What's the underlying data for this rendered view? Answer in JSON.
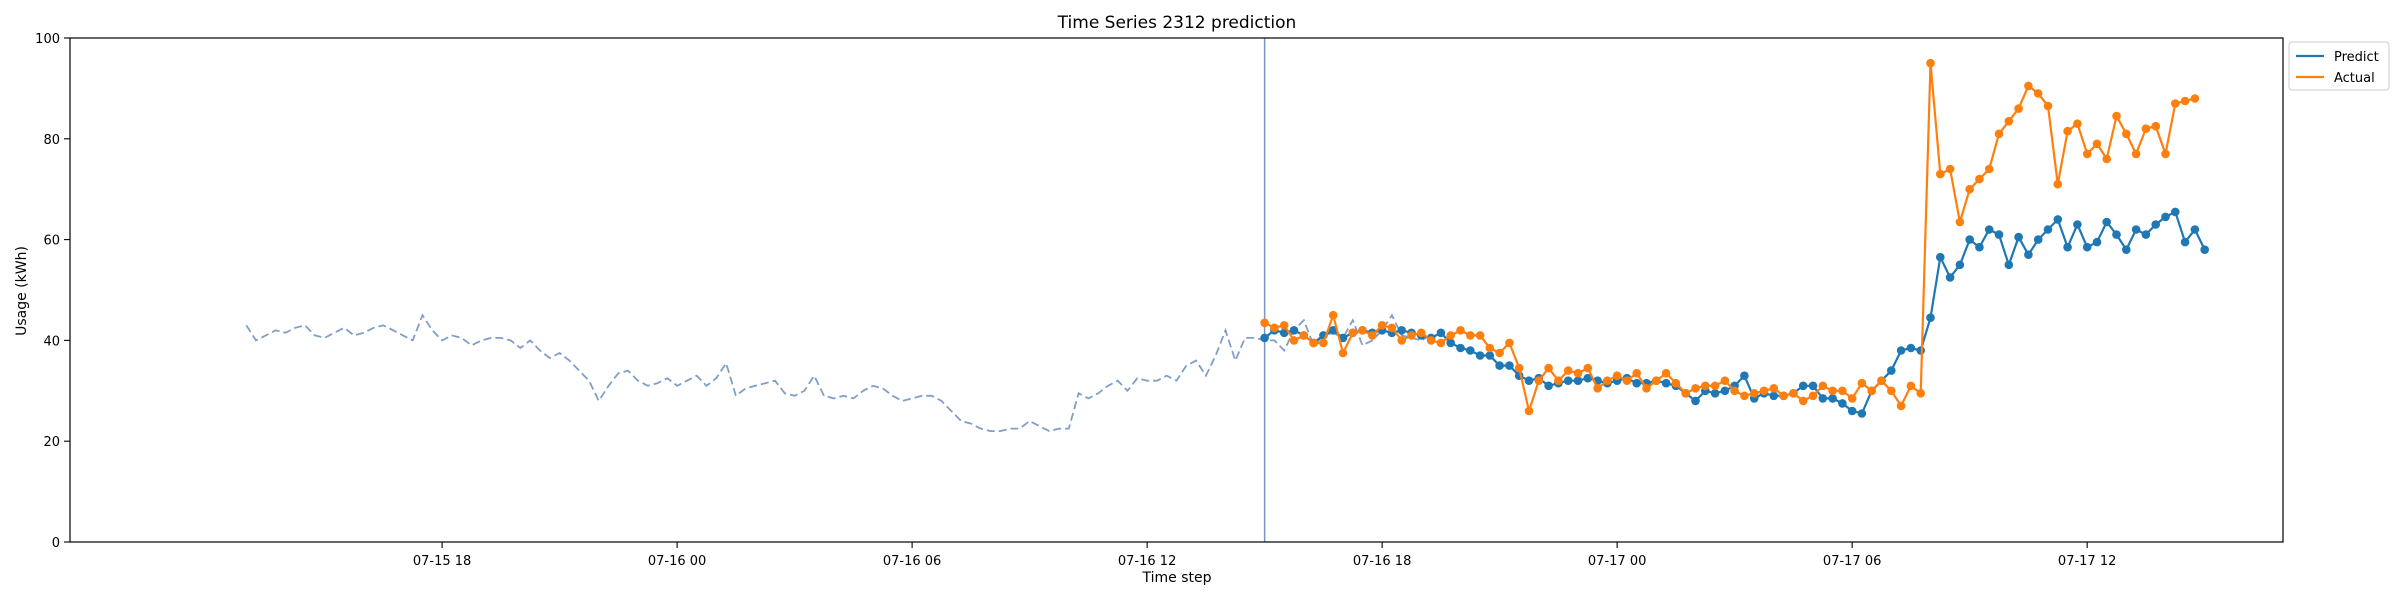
{
  "chart_data": {
    "type": "line",
    "title": "Time Series 2312 prediction",
    "xlabel": "Time step",
    "ylabel": "Usage (kWh)",
    "ylim": [
      0,
      100
    ],
    "yticks": [
      0,
      20,
      40,
      60,
      80,
      100
    ],
    "xlim": [
      "2024-07-15 08:30",
      "2024-07-17 17:00"
    ],
    "xticks": [
      {
        "t": "2024-07-15 18:00",
        "label": "07-15 18"
      },
      {
        "t": "2024-07-16 00:00",
        "label": "07-16 00"
      },
      {
        "t": "2024-07-16 06:00",
        "label": "07-16 06"
      },
      {
        "t": "2024-07-16 12:00",
        "label": "07-16 12"
      },
      {
        "t": "2024-07-16 18:00",
        "label": "07-16 18"
      },
      {
        "t": "2024-07-17 00:00",
        "label": "07-17 00"
      },
      {
        "t": "2024-07-17 06:00",
        "label": "07-17 06"
      },
      {
        "t": "2024-07-17 12:00",
        "label": "07-17 12"
      }
    ],
    "forecast_start": "2024-07-16 15:00",
    "grid": false,
    "legend_position": "top-right",
    "history": {
      "start": "2024-07-15 13:00",
      "step_minutes": 15,
      "color": "#7f9fc8",
      "values": [
        43,
        40,
        41,
        42,
        41.5,
        42.5,
        43,
        41,
        40.5,
        41.5,
        42.5,
        41,
        41.5,
        42.5,
        43,
        42,
        41,
        40,
        45,
        42,
        40,
        41,
        40.5,
        39,
        40,
        40.5,
        40.5,
        40,
        38.5,
        40,
        38,
        36.5,
        37.5,
        36,
        34,
        32,
        28,
        31,
        33.5,
        34,
        32,
        31,
        31.5,
        32.5,
        31,
        32,
        33,
        31,
        32.5,
        35.5,
        29,
        30.5,
        31,
        31.5,
        32,
        29.5,
        29,
        30,
        33,
        29,
        28.5,
        29,
        28.5,
        30,
        31,
        30.5,
        29,
        28,
        28.5,
        29,
        29,
        28,
        26,
        24,
        23.5,
        22.5,
        22,
        22,
        22.5,
        22.5,
        24,
        23,
        22,
        22.5,
        22.5,
        29.5,
        28.5,
        29.5,
        31,
        32,
        30,
        32.5,
        32,
        32,
        33,
        32,
        35,
        36,
        33,
        37,
        42,
        36,
        40.5,
        40.5,
        40,
        40,
        38,
        42,
        44,
        39,
        41,
        41.5,
        40.5,
        44,
        39,
        40,
        42,
        45,
        41,
        40.5,
        40,
        41
      ]
    },
    "series": [
      {
        "name": "Predict",
        "color": "#1f77b4",
        "start": "2024-07-16 15:00",
        "step_minutes": 15,
        "values": [
          40.5,
          42,
          41.5,
          42,
          41,
          39.5,
          41,
          42,
          40.5,
          41.5,
          42,
          41.5,
          42,
          41.5,
          42,
          41.5,
          41,
          40.5,
          41.5,
          39.5,
          38.5,
          38,
          37,
          37,
          35,
          35,
          33,
          32,
          32.5,
          31,
          31.5,
          32,
          32,
          32.5,
          32,
          31.5,
          32,
          32.5,
          31.5,
          31.5,
          32,
          31.5,
          31,
          29.5,
          28,
          30,
          29.5,
          30,
          31,
          33,
          28.5,
          29.5,
          29,
          29,
          29.5,
          31,
          31,
          28.5,
          28.5,
          27.5,
          26,
          25.5,
          30,
          32,
          34,
          38,
          38.5,
          38,
          44.5,
          56.5,
          52.5,
          55,
          60,
          58.5,
          62,
          61,
          55,
          60.5,
          57,
          60,
          62,
          64,
          58.5,
          63,
          58.5,
          59.5,
          63.5,
          61,
          58,
          62,
          61,
          63,
          64.5,
          65.5,
          59.5,
          62,
          58
        ]
      },
      {
        "name": "Actual",
        "color": "#ff7f0e",
        "start": "2024-07-16 15:00",
        "step_minutes": 15,
        "values": [
          43.5,
          42.5,
          43,
          40,
          41,
          39.5,
          39.5,
          45,
          37.5,
          41.5,
          42,
          41,
          43,
          42.5,
          40,
          41,
          41.5,
          40,
          39.5,
          41,
          42,
          41,
          41,
          38.5,
          37.5,
          39.5,
          34.5,
          26,
          32,
          34.5,
          32,
          34,
          33.5,
          34.5,
          30.5,
          32,
          33,
          32,
          33.5,
          30.5,
          32,
          33.5,
          31.5,
          29.5,
          30.5,
          31,
          31,
          32,
          30,
          29,
          29.5,
          30,
          30.5,
          29,
          29.5,
          28,
          29,
          31,
          30,
          30,
          28.5,
          31.5,
          30,
          32,
          30,
          27,
          31,
          29.5,
          95,
          73,
          74,
          63.5,
          70,
          72,
          74,
          81,
          83.5,
          86,
          90.5,
          89,
          86.5,
          71,
          81.5,
          83,
          77,
          79,
          76,
          84.5,
          81,
          77,
          82,
          82.5,
          77,
          87,
          87.5,
          88
        ]
      }
    ]
  }
}
